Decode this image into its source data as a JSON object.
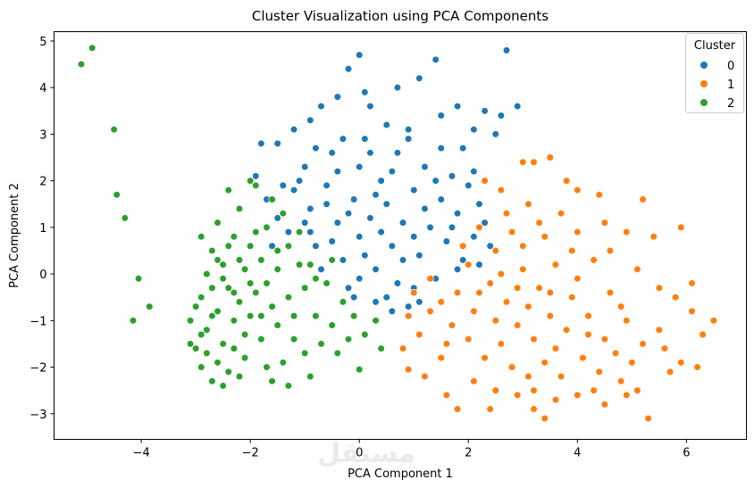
{
  "chart_data": {
    "type": "scatter",
    "title": "Cluster Visualization using PCA Components",
    "xlabel": "PCA Component 1",
    "ylabel": "PCA Component 2",
    "xlim": [
      -5.6,
      7.1
    ],
    "ylim": [
      -3.55,
      5.2
    ],
    "xticks": [
      -4,
      -2,
      0,
      2,
      4,
      6
    ],
    "yticks": [
      -3,
      -2,
      -1,
      0,
      1,
      2,
      3,
      4,
      5
    ],
    "grid": false,
    "legend": {
      "title": "Cluster",
      "placement": "top-right"
    },
    "watermark": "mostaql.com",
    "series": [
      {
        "name": "0",
        "color": "#1f77b4",
        "points": [
          [
            -1.8,
            2.8
          ],
          [
            -1.5,
            2.8
          ],
          [
            -1.2,
            3.1
          ],
          [
            -0.9,
            3.3
          ],
          [
            -0.7,
            3.6
          ],
          [
            -0.4,
            3.8
          ],
          [
            -0.2,
            4.4
          ],
          [
            0,
            4.7
          ],
          [
            0.1,
            3.9
          ],
          [
            0.2,
            3.6
          ],
          [
            0.5,
            3.2
          ],
          [
            0.7,
            4.0
          ],
          [
            0.9,
            2.9
          ],
          [
            1.1,
            4.2
          ],
          [
            1.4,
            4.6
          ],
          [
            1.5,
            3.4
          ],
          [
            1.8,
            3.6
          ],
          [
            1.9,
            2.7
          ],
          [
            2.1,
            3.1
          ],
          [
            2.3,
            3.5
          ],
          [
            2.6,
            3.4
          ],
          [
            2.7,
            4.8
          ],
          [
            2.9,
            3.6
          ],
          [
            2.5,
            3.0
          ],
          [
            -1.9,
            2.1
          ],
          [
            -1.7,
            1.6
          ],
          [
            -1.5,
            1.2
          ],
          [
            -1.6,
            0.6
          ],
          [
            -1.3,
            0.9
          ],
          [
            -1.2,
            1.8
          ],
          [
            -1.0,
            2.3
          ],
          [
            -0.9,
            1.4
          ],
          [
            -0.8,
            0.6
          ],
          [
            -0.7,
            0.1
          ],
          [
            -0.6,
            1.9
          ],
          [
            -0.5,
            2.6
          ],
          [
            -0.4,
            1.1
          ],
          [
            -0.3,
            0.3
          ],
          [
            -0.2,
            -0.3
          ],
          [
            -0.1,
            1.6
          ],
          [
            0,
            2.3
          ],
          [
            0,
            0.8
          ],
          [
            0.1,
            2.9
          ],
          [
            0.2,
            1.2
          ],
          [
            0.3,
            0.1
          ],
          [
            0.3,
            -0.6
          ],
          [
            0.4,
            2.0
          ],
          [
            0.5,
            1.5
          ],
          [
            0.6,
            0.6
          ],
          [
            0.7,
            -0.2
          ],
          [
            0.7,
            2.6
          ],
          [
            0.8,
            1.1
          ],
          [
            0.9,
            -0.7
          ],
          [
            1.0,
            1.8
          ],
          [
            1.1,
            0.4
          ],
          [
            1.2,
            2.3
          ],
          [
            1.3,
            1.0
          ],
          [
            1.4,
            -0.1
          ],
          [
            1.5,
            1.6
          ],
          [
            1.6,
            0.7
          ],
          [
            1.7,
            2.1
          ],
          [
            1.8,
            1.3
          ],
          [
            1.9,
            0.3
          ],
          [
            2.0,
            1.9
          ],
          [
            2.1,
            0.8
          ],
          [
            2.2,
            1.5
          ],
          [
            2.3,
            1.1
          ],
          [
            2.4,
            0.6
          ],
          [
            1.5,
            2.7
          ],
          [
            0.9,
            3.1
          ],
          [
            0.2,
            2.6
          ],
          [
            -0.3,
            2.9
          ],
          [
            -0.8,
            2.7
          ],
          [
            -1.1,
            2.0
          ],
          [
            -1.4,
            1.9
          ],
          [
            -0.5,
            0.7
          ],
          [
            0.0,
            -0.1
          ],
          [
            0.5,
            -0.5
          ],
          [
            1.0,
            -0.3
          ],
          [
            -0.2,
            1.3
          ],
          [
            0.4,
            0.9
          ],
          [
            1.2,
            1.4
          ],
          [
            0.6,
            2.2
          ],
          [
            -0.9,
            0.9
          ],
          [
            1.8,
            0.1
          ],
          [
            2.1,
            2.2
          ],
          [
            0.8,
            0.3
          ],
          [
            -0.6,
            1.5
          ],
          [
            0.1,
            0.4
          ],
          [
            1.4,
            2.0
          ],
          [
            -1.0,
            1.1
          ],
          [
            1.7,
            1.0
          ],
          [
            0.3,
            1.7
          ],
          [
            -0.4,
            2.2
          ],
          [
            1.0,
            0.8
          ],
          [
            2.2,
            0.2
          ],
          [
            -0.1,
            -0.5
          ],
          [
            0.6,
            -0.8
          ],
          [
            1.1,
            -0.6
          ]
        ]
      },
      {
        "name": "1",
        "color": "#ff7f0e",
        "points": [
          [
            2.3,
            2.0
          ],
          [
            2.7,
            1.3
          ],
          [
            3.0,
            2.4
          ],
          [
            3.2,
            2.4
          ],
          [
            3.5,
            2.5
          ],
          [
            3.8,
            2.0
          ],
          [
            4.0,
            1.8
          ],
          [
            4.4,
            1.7
          ],
          [
            5.2,
            1.6
          ],
          [
            5.9,
            1.0
          ],
          [
            5.4,
            0.8
          ],
          [
            4.9,
            0.9
          ],
          [
            1.3,
            -0.1
          ],
          [
            1.0,
            -0.4
          ],
          [
            0.9,
            -0.9
          ],
          [
            1.1,
            -1.3
          ],
          [
            0.8,
            -1.6
          ],
          [
            1.5,
            -1.8
          ],
          [
            1.2,
            -2.2
          ],
          [
            0.9,
            -2.05
          ],
          [
            1.6,
            -2.6
          ],
          [
            1.8,
            -2.9
          ],
          [
            2.1,
            -2.3
          ],
          [
            2.5,
            -2.5
          ],
          [
            2.9,
            -2.6
          ],
          [
            3.2,
            -2.9
          ],
          [
            3.4,
            -3.1
          ],
          [
            3.6,
            -2.7
          ],
          [
            4.0,
            -2.6
          ],
          [
            4.3,
            -2.5
          ],
          [
            4.5,
            -2.8
          ],
          [
            4.8,
            -2.3
          ],
          [
            5.1,
            -2.5
          ],
          [
            5.3,
            -3.1
          ],
          [
            5.7,
            -2.1
          ],
          [
            5.9,
            -1.9
          ],
          [
            6.2,
            -2.0
          ],
          [
            6.3,
            -1.3
          ],
          [
            6.5,
            -1.0
          ],
          [
            6.1,
            -0.8
          ],
          [
            6.1,
            -0.2
          ],
          [
            5.8,
            -0.5
          ],
          [
            5.5,
            -1.2
          ],
          [
            5.2,
            -1.5
          ],
          [
            4.9,
            -1.0
          ],
          [
            4.6,
            -0.4
          ],
          [
            4.3,
            0.3
          ],
          [
            4.0,
            0.9
          ],
          [
            3.7,
            1.3
          ],
          [
            3.4,
            0.8
          ],
          [
            3.1,
            1.5
          ],
          [
            2.8,
            0.9
          ],
          [
            2.5,
            0.5
          ],
          [
            2.2,
            1.0
          ],
          [
            2.0,
            0.2
          ],
          [
            1.8,
            -0.4
          ],
          [
            2.1,
            -0.8
          ],
          [
            2.4,
            -0.2
          ],
          [
            2.7,
            -0.6
          ],
          [
            3.0,
            0.1
          ],
          [
            3.3,
            -0.3
          ],
          [
            3.6,
            0.2
          ],
          [
            3.9,
            -0.5
          ],
          [
            4.2,
            -0.9
          ],
          [
            4.5,
            -1.4
          ],
          [
            4.1,
            -1.8
          ],
          [
            3.8,
            -1.2
          ],
          [
            3.5,
            -0.9
          ],
          [
            3.2,
            -1.4
          ],
          [
            2.9,
            -1.1
          ],
          [
            2.6,
            -1.5
          ],
          [
            2.3,
            -1.8
          ],
          [
            2.0,
            -1.4
          ],
          [
            1.7,
            -1.1
          ],
          [
            1.5,
            -0.6
          ],
          [
            2.8,
            -2.0
          ],
          [
            3.1,
            -2.2
          ],
          [
            3.4,
            -1.9
          ],
          [
            3.7,
            -2.2
          ],
          [
            4.4,
            -2.1
          ],
          [
            4.7,
            -1.7
          ],
          [
            5.0,
            -1.9
          ],
          [
            3.0,
            0.6
          ],
          [
            2.6,
            1.8
          ],
          [
            3.3,
            1.1
          ],
          [
            4.6,
            0.5
          ],
          [
            5.1,
            0.1
          ],
          [
            4.8,
            -0.7
          ],
          [
            3.9,
            0.5
          ],
          [
            2.2,
            -0.4
          ],
          [
            1.6,
            -1.5
          ],
          [
            2.5,
            -1.0
          ],
          [
            3.6,
            -1.6
          ],
          [
            4.2,
            -1.3
          ],
          [
            2.9,
            -0.3
          ],
          [
            3.5,
            -0.4
          ],
          [
            4.0,
            -0.1
          ],
          [
            1.9,
            0.6
          ],
          [
            2.6,
            0.0
          ],
          [
            3.1,
            -0.7
          ],
          [
            5.5,
            -0.3
          ],
          [
            4.5,
            1.1
          ],
          [
            3.2,
            -2.5
          ],
          [
            2.4,
            -2.9
          ],
          [
            4.9,
            -2.6
          ],
          [
            5.6,
            -1.6
          ],
          [
            1.3,
            -0.8
          ]
        ]
      },
      {
        "name": "2",
        "color": "#2ca02c",
        "points": [
          [
            -5.1,
            4.5
          ],
          [
            -4.9,
            4.85
          ],
          [
            -4.5,
            3.1
          ],
          [
            -4.45,
            1.7
          ],
          [
            -4.3,
            1.2
          ],
          [
            -4.05,
            -0.1
          ],
          [
            -4.15,
            -1.0
          ],
          [
            -3.85,
            -0.7
          ],
          [
            -3.1,
            -1.0
          ],
          [
            -3.0,
            -1.6
          ],
          [
            -2.9,
            -0.5
          ],
          [
            -2.9,
            -2.0
          ],
          [
            -2.8,
            0.0
          ],
          [
            -2.8,
            -1.2
          ],
          [
            -2.7,
            0.5
          ],
          [
            -2.7,
            -2.3
          ],
          [
            -2.6,
            -0.8
          ],
          [
            -2.6,
            1.1
          ],
          [
            -2.5,
            -1.5
          ],
          [
            -2.5,
            0.2
          ],
          [
            -2.4,
            -0.3
          ],
          [
            -2.4,
            -2.1
          ],
          [
            -2.3,
            0.8
          ],
          [
            -2.3,
            -1.0
          ],
          [
            -2.2,
            -0.6
          ],
          [
            -2.2,
            1.4
          ],
          [
            -2.1,
            -1.8
          ],
          [
            -2.1,
            0.1
          ],
          [
            -2.0,
            -0.9
          ],
          [
            -2.0,
            0.6
          ],
          [
            -1.9,
            1.9
          ],
          [
            -1.9,
            -0.4
          ],
          [
            -1.8,
            -1.4
          ],
          [
            -1.8,
            0.3
          ],
          [
            -1.7,
            -2.0
          ],
          [
            -1.7,
            1.0
          ],
          [
            -1.6,
            -0.7
          ],
          [
            -1.5,
            0.1
          ],
          [
            -1.5,
            -1.1
          ],
          [
            -1.4,
            -1.9
          ],
          [
            -1.3,
            0.6
          ],
          [
            -1.3,
            -0.5
          ],
          [
            -1.2,
            -1.4
          ],
          [
            -1.1,
            0.9
          ],
          [
            -1.0,
            -0.3
          ],
          [
            -1.0,
            -1.7
          ],
          [
            -0.9,
            0.2
          ],
          [
            -0.8,
            -0.9
          ],
          [
            -0.7,
            -1.5
          ],
          [
            -0.6,
            -0.2
          ],
          [
            -0.5,
            -1.1
          ],
          [
            -0.4,
            -1.7
          ],
          [
            -0.3,
            -0.6
          ],
          [
            -0.2,
            -1.4
          ],
          [
            -0.1,
            -0.9
          ],
          [
            0,
            -2.05
          ],
          [
            0.1,
            -1.3
          ],
          [
            0.3,
            -1.0
          ],
          [
            0.4,
            -1.6
          ],
          [
            -1.6,
            -2.3
          ],
          [
            -2.4,
            1.8
          ],
          [
            -2.0,
            2.0
          ],
          [
            -1.6,
            1.6
          ],
          [
            -2.9,
            0.8
          ],
          [
            -3.1,
            -1.5
          ],
          [
            -2.6,
            -1.9
          ],
          [
            -2.2,
            -2.2
          ],
          [
            -2.5,
            -0.1
          ],
          [
            -2.3,
            -0.4
          ],
          [
            -2.7,
            -0.9
          ],
          [
            -2.1,
            -1.3
          ],
          [
            -1.9,
            0.9
          ],
          [
            -1.4,
            1.3
          ],
          [
            -1.1,
            0.2
          ],
          [
            -0.8,
            -0.1
          ],
          [
            -1.2,
            -0.9
          ],
          [
            -2.8,
            -1.7
          ],
          [
            -2.6,
            0.3
          ],
          [
            -2.0,
            -0.2
          ],
          [
            -2.4,
            0.6
          ],
          [
            -1.8,
            -0.9
          ],
          [
            -2.2,
            0.3
          ],
          [
            -2.7,
            -0.3
          ],
          [
            -3.0,
            -0.7
          ],
          [
            -1.5,
            0.5
          ],
          [
            -1.7,
            -0.2
          ],
          [
            -2.9,
            -1.3
          ],
          [
            -2.3,
            -1.6
          ],
          [
            -0.5,
            0.3
          ],
          [
            -0.9,
            -2.2
          ],
          [
            -1.3,
            -2.4
          ],
          [
            -2.5,
            -2.4
          ]
        ]
      }
    ]
  }
}
